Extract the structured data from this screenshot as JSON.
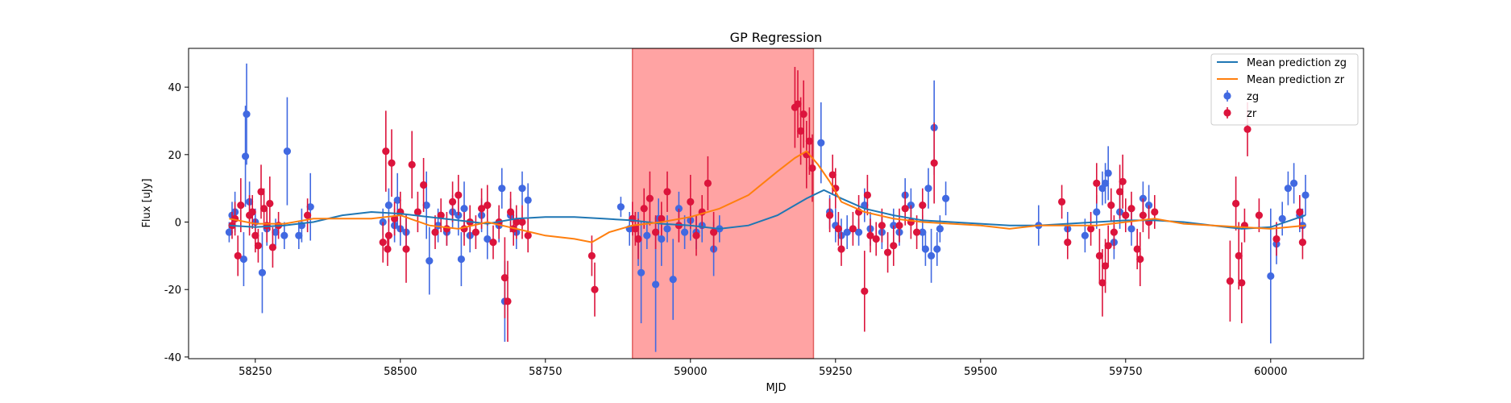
{
  "chart_data": {
    "type": "scatter",
    "title": "GP Regression",
    "xlabel": "MJD",
    "ylabel": "Flux [uJy]",
    "xlim": [
      58135,
      60160
    ],
    "ylim": [
      -40.5,
      51.5
    ],
    "xticks": [
      58250,
      58500,
      58750,
      59000,
      59250,
      59500,
      59750,
      60000
    ],
    "yticks": [
      -40,
      -20,
      0,
      20,
      40
    ],
    "legend_placement": "top-right",
    "shaded_region": {
      "x": [
        58900,
        59212
      ],
      "color": "#ff6666"
    },
    "lines": [
      {
        "name": "Mean prediction zg",
        "color": "#1f77b4",
        "x": [
          58205,
          58250,
          58300,
          58350,
          58400,
          58450,
          58500,
          58550,
          58600,
          58650,
          58700,
          58750,
          58800,
          58850,
          58900,
          58950,
          59000,
          59050,
          59100,
          59150,
          59200,
          59230,
          59260,
          59300,
          59350,
          59400,
          59450,
          59500,
          59550,
          59600,
          59650,
          59700,
          59750,
          59800,
          59850,
          59900,
          59950,
          60000,
          60060
        ],
        "y": [
          -1,
          -1.5,
          -1,
          0,
          2,
          3,
          2.5,
          1.5,
          0.5,
          -0.5,
          1,
          1.5,
          1.5,
          1,
          0.5,
          -0.5,
          -1,
          -2,
          -1,
          2,
          7,
          9.5,
          7,
          4,
          2,
          0.5,
          0,
          -0.5,
          -1,
          -1,
          -0.5,
          0,
          0.5,
          0.5,
          0,
          -1,
          -2,
          -1.5,
          2
        ]
      },
      {
        "name": "Mean prediction zr",
        "color": "#ff7f0e",
        "x": [
          58205,
          58250,
          58300,
          58350,
          58400,
          58450,
          58500,
          58550,
          58600,
          58650,
          58700,
          58750,
          58800,
          58830,
          58860,
          58900,
          58950,
          59000,
          59050,
          59100,
          59150,
          59180,
          59200,
          59220,
          59240,
          59260,
          59300,
          59350,
          59400,
          59450,
          59500,
          59550,
          59600,
          59650,
          59700,
          59750,
          59800,
          59850,
          59900,
          59950,
          60000,
          60060
        ],
        "y": [
          1,
          -0.5,
          -0.5,
          1,
          1,
          1,
          2,
          -1,
          -2,
          0,
          -2,
          -4,
          -5,
          -6,
          -3,
          -1,
          0,
          1.5,
          4,
          8,
          15,
          19,
          21,
          17,
          12,
          6,
          3,
          1,
          0,
          -0.5,
          -1,
          -2,
          -1,
          -1,
          -1,
          0,
          1,
          -0.5,
          -1,
          -1.5,
          -2,
          -1
        ]
      }
    ],
    "series": [
      {
        "name": "zg",
        "color": "#4169e1",
        "points": [
          [
            58205,
            -3,
            3
          ],
          [
            58210,
            2,
            4
          ],
          [
            58215,
            3,
            6
          ],
          [
            58230,
            -11,
            8
          ],
          [
            58233,
            19.5,
            15
          ],
          [
            58235,
            32,
            15
          ],
          [
            58240,
            6,
            6
          ],
          [
            58250,
            0,
            4
          ],
          [
            58262,
            -15,
            12
          ],
          [
            58270,
            -2,
            5
          ],
          [
            58285,
            -3,
            4
          ],
          [
            58300,
            -4,
            4
          ],
          [
            58305,
            21,
            16
          ],
          [
            58325,
            -4,
            4
          ],
          [
            58330,
            -1,
            5
          ],
          [
            58345,
            4.5,
            10
          ],
          [
            58470,
            0,
            4
          ],
          [
            58480,
            5,
            5
          ],
          [
            58490,
            -1,
            5
          ],
          [
            58495,
            6.5,
            8
          ],
          [
            58500,
            -2,
            5
          ],
          [
            58510,
            -3,
            5
          ],
          [
            58545,
            5,
            10
          ],
          [
            58550,
            -11.5,
            10
          ],
          [
            58565,
            -1,
            5
          ],
          [
            58580,
            -3,
            4
          ],
          [
            58590,
            3,
            5
          ],
          [
            58600,
            2,
            6
          ],
          [
            58605,
            -11,
            8
          ],
          [
            58610,
            4,
            8
          ],
          [
            58620,
            -4,
            5
          ],
          [
            58640,
            2,
            5
          ],
          [
            58650,
            -5,
            6
          ],
          [
            58670,
            -1,
            5
          ],
          [
            58675,
            10,
            6
          ],
          [
            58680,
            -23.5,
            12
          ],
          [
            58690,
            2,
            5
          ],
          [
            58700,
            -3,
            5
          ],
          [
            58710,
            10,
            5
          ],
          [
            58720,
            6.5,
            5
          ],
          [
            58880,
            4.5,
            3
          ],
          [
            58895,
            -2,
            5
          ],
          [
            58910,
            -5,
            8
          ],
          [
            58915,
            -15,
            15
          ],
          [
            58925,
            -4,
            4
          ],
          [
            58940,
            -18.5,
            20
          ],
          [
            58945,
            1,
            6
          ],
          [
            58950,
            -5,
            8
          ],
          [
            58960,
            -2,
            4
          ],
          [
            58970,
            -17,
            12
          ],
          [
            58980,
            4,
            5
          ],
          [
            58990,
            -3,
            5
          ],
          [
            59000,
            0.5,
            6
          ],
          [
            59010,
            -3,
            5
          ],
          [
            59020,
            -1,
            5
          ],
          [
            59040,
            -8,
            8
          ],
          [
            59050,
            -2,
            4
          ],
          [
            59225,
            23.5,
            12
          ],
          [
            59240,
            3,
            5
          ],
          [
            59250,
            -1,
            5
          ],
          [
            59260,
            -4,
            5
          ],
          [
            59270,
            -3,
            5
          ],
          [
            59290,
            -3,
            4
          ],
          [
            59300,
            5,
            5
          ],
          [
            59310,
            -2,
            5
          ],
          [
            59330,
            -3,
            5
          ],
          [
            59350,
            -1,
            5
          ],
          [
            59360,
            -3,
            4
          ],
          [
            59370,
            8,
            5
          ],
          [
            59380,
            5,
            5
          ],
          [
            59400,
            -3,
            5
          ],
          [
            59405,
            -8,
            5
          ],
          [
            59410,
            10,
            6
          ],
          [
            59415,
            -10,
            8
          ],
          [
            59420,
            28,
            14
          ],
          [
            59425,
            -8,
            5
          ],
          [
            59430,
            -2,
            4
          ],
          [
            59440,
            7,
            5
          ],
          [
            59600,
            -1,
            6
          ],
          [
            59650,
            -2,
            5
          ],
          [
            59680,
            -4,
            5
          ],
          [
            59700,
            3,
            5
          ],
          [
            59710,
            10,
            5
          ],
          [
            59715,
            11.5,
            6
          ],
          [
            59720,
            14.5,
            8
          ],
          [
            59730,
            -6,
            5
          ],
          [
            59740,
            3,
            5
          ],
          [
            59760,
            -2,
            5
          ],
          [
            59780,
            7,
            5
          ],
          [
            59790,
            5,
            6
          ],
          [
            60000,
            -16,
            20
          ],
          [
            60010,
            -6.5,
            6
          ],
          [
            60020,
            1,
            5
          ],
          [
            60030,
            10,
            5
          ],
          [
            60040,
            11.5,
            6
          ],
          [
            60050,
            2,
            5
          ],
          [
            60060,
            8,
            6
          ],
          [
            60055,
            -1,
            5
          ]
        ]
      },
      {
        "name": "zr",
        "color": "#dc143c",
        "points": [
          [
            58210,
            -1,
            4
          ],
          [
            58215,
            1,
            5
          ],
          [
            58220,
            -10,
            6
          ],
          [
            58225,
            5,
            8
          ],
          [
            58240,
            2,
            6
          ],
          [
            58245,
            3,
            5
          ],
          [
            58250,
            -4,
            5
          ],
          [
            58255,
            -7,
            5
          ],
          [
            58260,
            9,
            8
          ],
          [
            58265,
            4,
            6
          ],
          [
            58270,
            -1,
            5
          ],
          [
            58275,
            5.5,
            8
          ],
          [
            58280,
            -7.5,
            6
          ],
          [
            58290,
            -1,
            4
          ],
          [
            58340,
            2,
            5
          ],
          [
            58470,
            -6,
            6
          ],
          [
            58475,
            21,
            12
          ],
          [
            58478,
            -8,
            5
          ],
          [
            58480,
            -4,
            5
          ],
          [
            58485,
            17.5,
            10
          ],
          [
            58490,
            1,
            5
          ],
          [
            58500,
            3,
            6
          ],
          [
            58510,
            -8,
            10
          ],
          [
            58520,
            17,
            10
          ],
          [
            58530,
            3,
            6
          ],
          [
            58540,
            11,
            8
          ],
          [
            58560,
            -3,
            5
          ],
          [
            58570,
            2,
            5
          ],
          [
            58580,
            -2,
            5
          ],
          [
            58590,
            6,
            6
          ],
          [
            58600,
            8,
            6
          ],
          [
            58610,
            -2,
            5
          ],
          [
            58620,
            0,
            5
          ],
          [
            58630,
            -3,
            5
          ],
          [
            58640,
            4,
            6
          ],
          [
            58650,
            5,
            6
          ],
          [
            58660,
            -6,
            5
          ],
          [
            58670,
            0,
            5
          ],
          [
            58680,
            -16.5,
            12
          ],
          [
            58685,
            -23.5,
            12
          ],
          [
            58690,
            3,
            6
          ],
          [
            58695,
            -2,
            5
          ],
          [
            58700,
            0,
            5
          ],
          [
            58710,
            0,
            5
          ],
          [
            58720,
            -4,
            5
          ],
          [
            58830,
            -10,
            6
          ],
          [
            58835,
            -20,
            8
          ],
          [
            58900,
            1,
            5
          ],
          [
            58905,
            -2,
            5
          ],
          [
            58910,
            -5,
            6
          ],
          [
            58920,
            4,
            6
          ],
          [
            58930,
            7,
            8
          ],
          [
            58940,
            -3,
            5
          ],
          [
            58950,
            1,
            5
          ],
          [
            58960,
            9,
            6
          ],
          [
            58980,
            -1,
            5
          ],
          [
            59000,
            6,
            8
          ],
          [
            59010,
            -4,
            6
          ],
          [
            59020,
            3,
            5
          ],
          [
            59030,
            11.5,
            8
          ],
          [
            59040,
            -3,
            6
          ],
          [
            59180,
            34,
            12
          ],
          [
            59185,
            35,
            10
          ],
          [
            59190,
            27,
            10
          ],
          [
            59195,
            32,
            10
          ],
          [
            59200,
            20,
            10
          ],
          [
            59205,
            24,
            10
          ],
          [
            59210,
            16,
            10
          ],
          [
            59240,
            2,
            5
          ],
          [
            59245,
            14,
            6
          ],
          [
            59250,
            10,
            6
          ],
          [
            59255,
            -2,
            5
          ],
          [
            59260,
            -8,
            5
          ],
          [
            59280,
            -2,
            5
          ],
          [
            59290,
            3,
            5
          ],
          [
            59300,
            -20.5,
            12
          ],
          [
            59305,
            8,
            6
          ],
          [
            59310,
            -4,
            5
          ],
          [
            59320,
            -5,
            5
          ],
          [
            59330,
            -1,
            5
          ],
          [
            59340,
            -9,
            6
          ],
          [
            59350,
            -7,
            6
          ],
          [
            59360,
            -1,
            5
          ],
          [
            59370,
            4,
            5
          ],
          [
            59380,
            0,
            5
          ],
          [
            59390,
            -3,
            5
          ],
          [
            59400,
            5,
            5
          ],
          [
            59420,
            17.5,
            12
          ],
          [
            59640,
            6,
            5
          ],
          [
            59650,
            -6,
            5
          ],
          [
            59690,
            -2,
            5
          ],
          [
            59700,
            11.5,
            6
          ],
          [
            59705,
            -10,
            8
          ],
          [
            59710,
            -18,
            10
          ],
          [
            59715,
            -13,
            8
          ],
          [
            59720,
            -7,
            6
          ],
          [
            59725,
            5,
            5
          ],
          [
            59730,
            -3,
            5
          ],
          [
            59740,
            9,
            8
          ],
          [
            59745,
            12,
            8
          ],
          [
            59750,
            2,
            5
          ],
          [
            59760,
            4,
            5
          ],
          [
            59770,
            -8,
            6
          ],
          [
            59775,
            -11,
            8
          ],
          [
            59780,
            2,
            5
          ],
          [
            59790,
            0,
            5
          ],
          [
            59800,
            3,
            5
          ],
          [
            59930,
            -17.5,
            12
          ],
          [
            59940,
            5.5,
            8
          ],
          [
            59945,
            -10,
            10
          ],
          [
            59950,
            -18,
            12
          ],
          [
            59955,
            -1,
            5
          ],
          [
            59960,
            27.5,
            8
          ],
          [
            59980,
            2,
            5
          ],
          [
            60010,
            -5,
            5
          ],
          [
            60050,
            3,
            5
          ],
          [
            60055,
            -6,
            5
          ]
        ]
      }
    ]
  }
}
